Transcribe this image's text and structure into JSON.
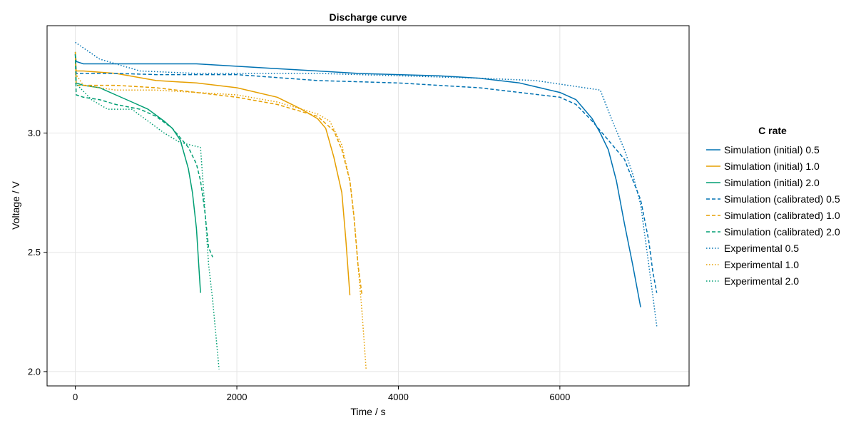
{
  "chart_data": {
    "type": "line",
    "title": "Discharge curve",
    "xlabel": "Time / s",
    "ylabel": "Voltage / V",
    "xlim": [
      -350,
      7600
    ],
    "ylim": [
      1.94,
      3.45
    ],
    "xticks": [
      0,
      2000,
      4000,
      6000
    ],
    "yticks": [
      2.0,
      2.5,
      3.0
    ],
    "ytick_labels": [
      "2.0",
      "2.5",
      "3.0"
    ],
    "grid": true,
    "legend": {
      "title": "C rate",
      "placement": "right"
    },
    "series": [
      {
        "name": "Simulation (initial) 0.5",
        "color": "#0072b2",
        "style": "solid",
        "x": [
          0,
          10,
          100,
          500,
          1000,
          1500,
          2000,
          2500,
          3000,
          3500,
          4000,
          4500,
          5000,
          5500,
          6000,
          6200,
          6400,
          6500,
          6600,
          6700,
          6800,
          6900,
          7000
        ],
        "y": [
          3.33,
          3.3,
          3.29,
          3.29,
          3.29,
          3.29,
          3.28,
          3.27,
          3.26,
          3.25,
          3.245,
          3.24,
          3.23,
          3.21,
          3.17,
          3.14,
          3.06,
          3.0,
          2.93,
          2.8,
          2.62,
          2.45,
          2.27
        ]
      },
      {
        "name": "Simulation (initial) 1.0",
        "color": "#e69f00",
        "style": "solid",
        "x": [
          0,
          10,
          100,
          500,
          1000,
          1500,
          2000,
          2500,
          2800,
          3000,
          3100,
          3200,
          3300,
          3350,
          3400
        ],
        "y": [
          3.33,
          3.26,
          3.26,
          3.25,
          3.22,
          3.21,
          3.19,
          3.15,
          3.1,
          3.06,
          3.02,
          2.9,
          2.75,
          2.55,
          2.32
        ]
      },
      {
        "name": "Simulation (initial) 2.0",
        "color": "#009e73",
        "style": "solid",
        "x": [
          0,
          10,
          100,
          300,
          500,
          700,
          900,
          1100,
          1200,
          1300,
          1400,
          1450,
          1500,
          1550
        ],
        "y": [
          3.34,
          3.21,
          3.2,
          3.19,
          3.16,
          3.13,
          3.1,
          3.05,
          3.02,
          2.97,
          2.85,
          2.75,
          2.6,
          2.33
        ]
      },
      {
        "name": "Simulation (calibrated) 0.5",
        "color": "#0072b2",
        "style": "dashed",
        "x": [
          0,
          10,
          100,
          500,
          1000,
          2000,
          3000,
          4000,
          5000,
          5500,
          6000,
          6200,
          6400,
          6600,
          6800,
          7000,
          7100,
          7150,
          7200
        ],
        "y": [
          3.33,
          3.25,
          3.25,
          3.25,
          3.245,
          3.245,
          3.22,
          3.21,
          3.19,
          3.17,
          3.15,
          3.12,
          3.05,
          2.97,
          2.89,
          2.72,
          2.55,
          2.42,
          2.33
        ]
      },
      {
        "name": "Simulation (calibrated) 1.0",
        "color": "#e69f00",
        "style": "dashed",
        "x": [
          0,
          10,
          100,
          300,
          500,
          1000,
          1500,
          2000,
          2500,
          3000,
          3200,
          3300,
          3400,
          3450,
          3500,
          3550
        ],
        "y": [
          3.34,
          3.2,
          3.2,
          3.2,
          3.2,
          3.19,
          3.17,
          3.15,
          3.12,
          3.07,
          3.01,
          2.93,
          2.8,
          2.65,
          2.45,
          2.32
        ]
      },
      {
        "name": "Simulation (calibrated) 2.0",
        "color": "#009e73",
        "style": "dashed",
        "x": [
          0,
          10,
          100,
          300,
          500,
          800,
          1000,
          1200,
          1300,
          1400,
          1500,
          1550,
          1600,
          1650,
          1700
        ],
        "y": [
          3.33,
          3.16,
          3.15,
          3.14,
          3.12,
          3.1,
          3.07,
          3.02,
          2.98,
          2.94,
          2.87,
          2.8,
          2.68,
          2.52,
          2.48
        ]
      },
      {
        "name": "Experimental 0.5",
        "color": "#0072b2",
        "style": "dotted",
        "x": [
          0,
          300,
          800,
          1500,
          2000,
          2500,
          3000,
          4000,
          5000,
          5700,
          6500,
          6650,
          6800,
          6900,
          7000,
          7100,
          7200
        ],
        "y": [
          3.38,
          3.31,
          3.26,
          3.25,
          3.25,
          3.25,
          3.25,
          3.24,
          3.23,
          3.22,
          3.18,
          3.05,
          2.93,
          2.83,
          2.7,
          2.45,
          2.19
        ]
      },
      {
        "name": "Experimental 1.0",
        "color": "#e69f00",
        "style": "dotted",
        "x": [
          0,
          100,
          500,
          1000,
          1500,
          2000,
          2500,
          3000,
          3150,
          3300,
          3400,
          3450,
          3500,
          3550,
          3600
        ],
        "y": [
          3.25,
          3.2,
          3.18,
          3.18,
          3.17,
          3.16,
          3.13,
          3.08,
          3.05,
          2.95,
          2.8,
          2.65,
          2.45,
          2.25,
          2.01
        ]
      },
      {
        "name": "Experimental 2.0",
        "color": "#009e73",
        "style": "dotted",
        "x": [
          0,
          200,
          400,
          700,
          900,
          1100,
          1300,
          1550,
          1600,
          1650,
          1700,
          1750,
          1780
        ],
        "y": [
          3.21,
          3.14,
          3.1,
          3.1,
          3.05,
          3.0,
          2.96,
          2.94,
          2.7,
          2.45,
          2.3,
          2.12,
          2.01
        ]
      }
    ]
  }
}
